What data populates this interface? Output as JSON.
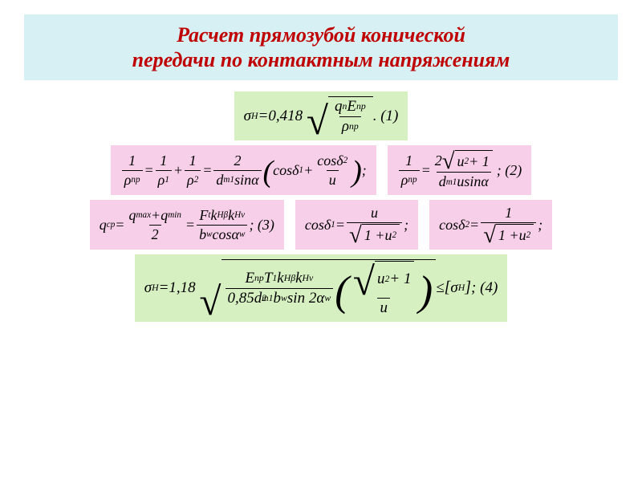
{
  "colors": {
    "title_bg": "#d6f0f4",
    "title_text": "#c00000",
    "green_bg": "#d7f0c2",
    "pink_bg": "#f7cfe8",
    "text": "#000000"
  },
  "title": {
    "line1": "Расчет прямозубой конической",
    "line2": "передачи по контактным напряжениям"
  },
  "eq1": {
    "sigma": "σ",
    "sub_H": "H",
    "eq": " = ",
    "coef": "0,418",
    "q": "q",
    "sub_n": "n",
    "E": "E",
    "sub_np": "пр",
    "rho": "ρ",
    "sub_rhonp": "пр",
    "tail": ". (1)"
  },
  "eq2": {
    "one": "1",
    "rho": "ρ",
    "np": "пр",
    "r1": "1",
    "r2": "2",
    "eq": " = ",
    "plus": " + ",
    "two": "2",
    "d": "d",
    "m1": "m1",
    "sin": " sin ",
    "alpha": "α",
    "cos": "cos ",
    "d1": "δ",
    "s1": "1",
    "d2": "δ",
    "s2": "2",
    "u": "u",
    "semi": ";"
  },
  "eq3": {
    "one": "1",
    "rho": "ρ",
    "np": "пр",
    "eq": " = ",
    "two": "2",
    "u": "u",
    "sq": "2",
    "plus1": " + 1",
    "d": "d",
    "m1": "m1",
    "sin": " sin ",
    "alpha": "α",
    "tail": "; (2)"
  },
  "eq4": {
    "q": "q",
    "cp": "ср",
    "eq": " = ",
    "qmax": "q",
    "max": "max",
    "plus": " + ",
    "qmin": "q",
    "min": "min",
    "two": "2",
    "F": "F",
    "t": "t",
    "k": "k",
    "Hb": "Hβ",
    "Hv": "Hv",
    "b": "b",
    "w": "w",
    "cos": " cos",
    "alpha": "α",
    "tail": "; (3)"
  },
  "eq5": {
    "cos": "cos ",
    "d1": "δ",
    "s1": "1",
    "eq": " = ",
    "u": "u",
    "one": "1",
    "plus": "1 + ",
    "sq": "2",
    "semi": ";"
  },
  "eq6": {
    "cos": "cos ",
    "d2": "δ",
    "s2": "2",
    "eq": " = ",
    "one": "1",
    "plus": "1 + ",
    "u": "u",
    "sq": "2",
    "semi": ";"
  },
  "eq7": {
    "sigma": "σ",
    "H": "H",
    "eq": " = ",
    "coef": "1,18",
    "E": "E",
    "np": "пр",
    "T": "T",
    "t1": "1",
    "k": "k",
    "Hb": "Hβ",
    "Hv": "Hv",
    "c085": "0,85",
    "d": "d",
    "m1": "m1",
    "p2": "2",
    "b": "b",
    "w": "w",
    "sin": " sin 2",
    "alpha": "α",
    "u": "u",
    "sq": "2",
    "plus1": " + 1",
    "le": " ≤ ",
    "lb": "[",
    "rb": "]",
    "tail": "; (4)"
  }
}
